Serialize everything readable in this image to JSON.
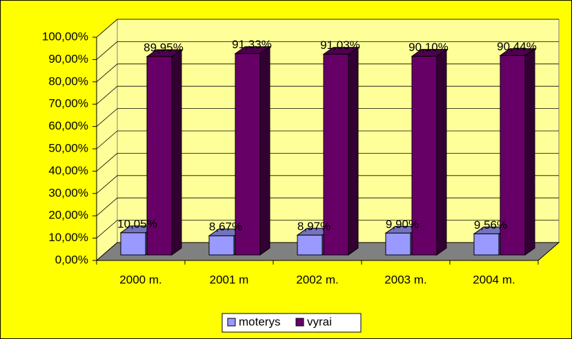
{
  "chart_data": {
    "type": "bar",
    "categories": [
      "2000 m.",
      "2001 m",
      "2002 m.",
      "2003 m.",
      "2004 m."
    ],
    "series": [
      {
        "name": "moterys",
        "color": "#9999ff",
        "values": [
          10.05,
          8.67,
          8.97,
          9.9,
          9.56
        ],
        "value_labels": [
          "10,05%",
          "8,67%",
          "8,97%",
          "9,90%",
          "9,56%"
        ]
      },
      {
        "name": "vyrai",
        "color": "#660066",
        "values": [
          89.95,
          91.33,
          91.03,
          90.1,
          90.44
        ],
        "value_labels": [
          "89,95%",
          "91,33%",
          "91,03%",
          "90,10%",
          "90,44%"
        ]
      }
    ],
    "ylim": [
      0,
      100
    ],
    "yticks": [
      {
        "value": 0,
        "label": "0,00%"
      },
      {
        "value": 10,
        "label": "10,00%"
      },
      {
        "value": 20,
        "label": "20,00%"
      },
      {
        "value": 30,
        "label": "30,00%"
      },
      {
        "value": 40,
        "label": "40,00%"
      },
      {
        "value": 50,
        "label": "50,00%"
      },
      {
        "value": 60,
        "label": "60,00%"
      },
      {
        "value": 70,
        "label": "70,00%"
      },
      {
        "value": 80,
        "label": "80,00%"
      },
      {
        "value": 90,
        "label": "90,00%"
      },
      {
        "value": 100,
        "label": "100,00%"
      }
    ],
    "grid": true,
    "legend": "bottom"
  }
}
